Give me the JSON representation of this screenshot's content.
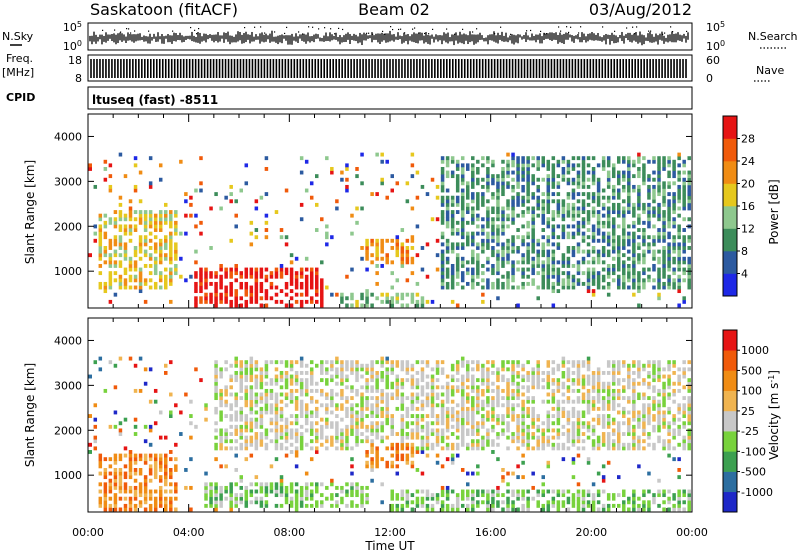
{
  "header": {
    "station": "Saskatoon (fitACF)",
    "beam": "Beam 02",
    "date": "03/Aug/2012"
  },
  "left_labels": {
    "nsky": "N.Sky",
    "freq": "Freq.",
    "freq_unit": "[MHz]",
    "cpid": "CPID"
  },
  "right_labels": {
    "nsearch": "N.Search",
    "nave": "Nave"
  },
  "panel_ticks": {
    "nsky_hi": "10^5",
    "nsky_lo": "10^0",
    "nsearch_hi": "10^5",
    "nsearch_lo": "10^0",
    "freq_hi": "18",
    "freq_lo": "8",
    "nave_hi": "60",
    "nave_lo": "0"
  },
  "cpid_text": "ltuseq (fast) -8511",
  "chart_data": [
    {
      "type": "heatmap",
      "name": "power",
      "ylabel": "Slant Range [km]",
      "ylim": [
        180,
        4500
      ],
      "yticks": [
        "1000",
        "2000",
        "3000",
        "4000"
      ],
      "colorbar_label": "Power [dB]",
      "colorbar_ticks": [
        "4",
        "8",
        "12",
        "16",
        "20",
        "24",
        "28"
      ],
      "colors": [
        "#1e28e6",
        "#2c5aa0",
        "#3c8c5a",
        "#8ec88e",
        "#e6c81e",
        "#f08c14",
        "#f05a0a",
        "#e61414"
      ],
      "features": [
        {
          "t": [
            0.3,
            3.5
          ],
          "r": [
            600,
            2300
          ],
          "level": 4
        },
        {
          "t": [
            4.2,
            9.2
          ],
          "r": [
            200,
            1000
          ],
          "level": 7
        },
        {
          "t": [
            10.0,
            13.5
          ],
          "r": [
            200,
            500
          ],
          "level": 3
        },
        {
          "t": [
            11.0,
            12.8
          ],
          "r": [
            1100,
            1700
          ],
          "level": 5
        },
        {
          "t": [
            14.0,
            24.0
          ],
          "r": [
            600,
            3500
          ],
          "level": 2
        }
      ]
    },
    {
      "type": "heatmap",
      "name": "velocity",
      "ylabel": "Slant Range [km]",
      "ylim": [
        180,
        4500
      ],
      "yticks": [
        "1000",
        "2000",
        "3000",
        "4000"
      ],
      "colorbar_label": "Velocity [m s^-1]",
      "colorbar_ticks": [
        "1000",
        "500",
        "100",
        "25",
        "-25",
        "-100",
        "-500",
        "-1000"
      ],
      "colors": [
        "#1e28c8",
        "#2c6ea0",
        "#3ca050",
        "#78d23c",
        "#c8c8c8",
        "#f0b450",
        "#f08c14",
        "#f05a0a",
        "#e61414"
      ],
      "features": [
        {
          "t": [
            0.3,
            3.5
          ],
          "r": [
            200,
            1400
          ],
          "level": 6
        },
        {
          "t": [
            4.5,
            11.0
          ],
          "r": [
            250,
            800
          ],
          "level": 3
        },
        {
          "t": [
            11.0,
            12.8
          ],
          "r": [
            1100,
            1700
          ],
          "level": 6
        },
        {
          "t": [
            12.0,
            24.0
          ],
          "r": [
            200,
            600
          ],
          "level": 3
        },
        {
          "t": [
            5.0,
            24.0
          ],
          "r": [
            1500,
            3500
          ],
          "level": 4
        }
      ]
    }
  ],
  "x_axis": {
    "label": "Time UT",
    "ticks": [
      "00:00",
      "04:00",
      "08:00",
      "12:00",
      "16:00",
      "20:00",
      "00:00"
    ]
  }
}
